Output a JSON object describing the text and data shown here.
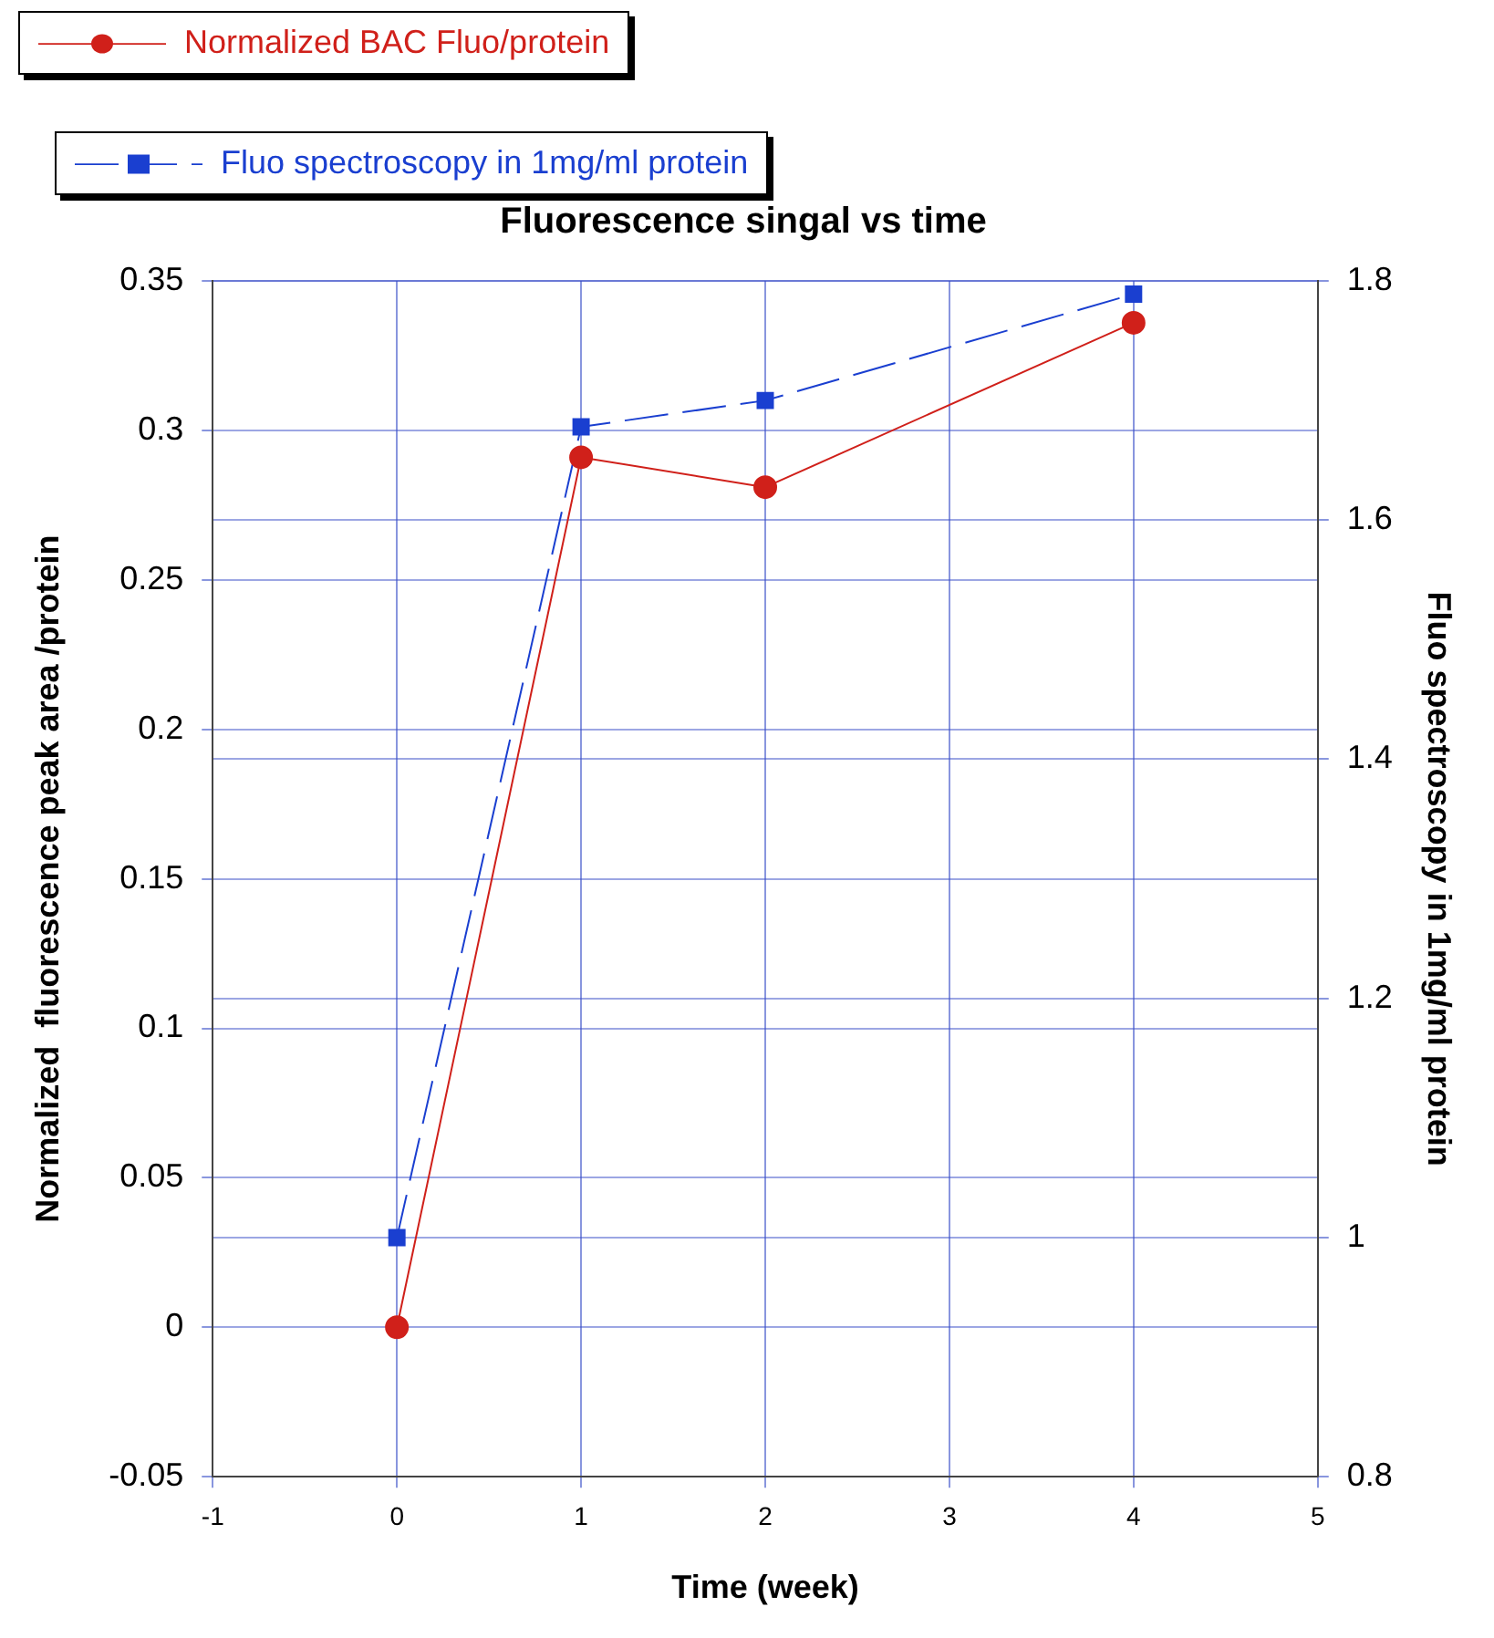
{
  "chart_data": {
    "type": "line",
    "title": "Fluorescence singal vs time",
    "xlabel": "Time (week)",
    "ylabel": "Normalized  fluorescence peak area /protein",
    "y2label": "Fluo spectroscopy in 1mg/ml protein",
    "x": [
      0,
      1,
      2,
      4
    ],
    "series": [
      {
        "name": "Normalized BAC Fluo/protein",
        "color": "#d0201a",
        "values": [
          0,
          0.291,
          0.281,
          0.336
        ],
        "marker": "circle",
        "line_style": "solid"
      },
      {
        "name": "Fluo spectroscopy in 1mg/ml protein",
        "color": "#1a3fd0",
        "values": [
          1.0,
          1.678,
          1.7,
          1.789
        ],
        "marker": "square",
        "line_style": "dashed",
        "axis": "y2"
      }
    ],
    "xlim": [
      -1,
      5
    ],
    "xticks": [
      -1,
      0,
      1,
      2,
      3,
      4,
      5
    ],
    "ylim": [
      -0.05,
      0.35
    ],
    "yticks": [
      -0.05,
      0,
      0.05,
      0.1,
      0.15,
      0.2,
      0.25,
      0.3,
      0.35
    ],
    "y2lim": [
      0.8,
      1.8
    ],
    "y2ticks": [
      0.8,
      1,
      1.2,
      1.4,
      1.6,
      1.8
    ],
    "grid": true,
    "legend": "top left"
  }
}
